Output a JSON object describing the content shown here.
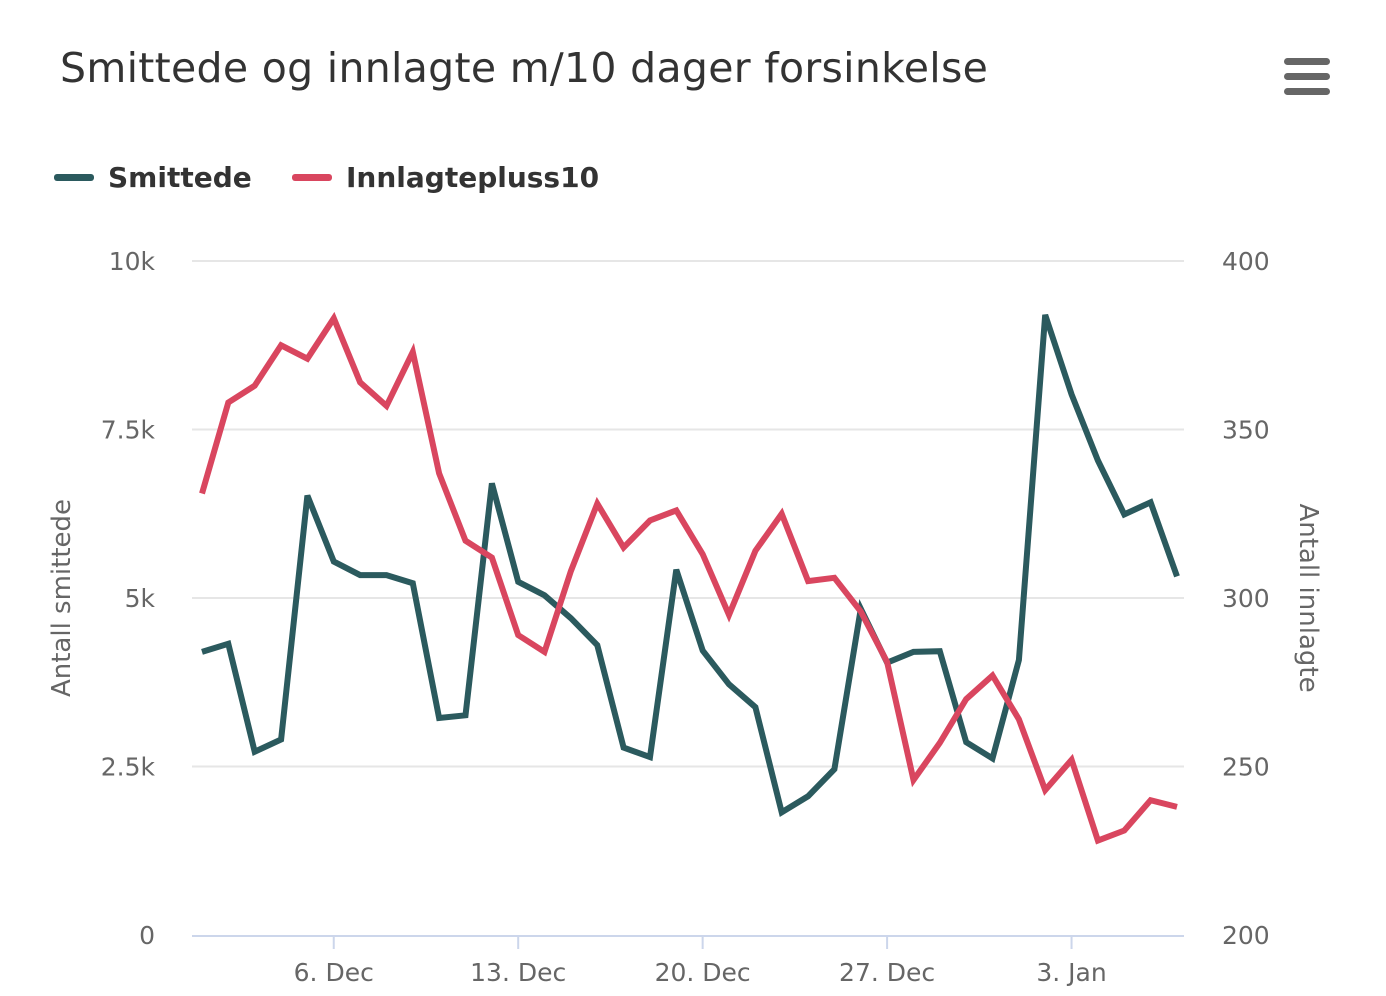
{
  "title": "Smittede og innlagte m/10 dager forsinkelse",
  "menu_icon": "hamburger-menu-icon",
  "colors": {
    "smittede": "#2b5a5e",
    "innlagte": "#d9465f",
    "grid": "#e6e6e6",
    "axis": "#ccd6eb",
    "text": "#333333",
    "muted": "#666666"
  },
  "chart_data": {
    "type": "line",
    "title": "Smittede og innlagte m/10 dager forsinkelse",
    "legend_position": "top-left",
    "grid": true,
    "x_labels": [
      "6. Dec",
      "13. Dec",
      "20. Dec",
      "27. Dec",
      "3. Jan"
    ],
    "x_label_dates": [
      "2020-12-06",
      "2020-12-13",
      "2020-12-20",
      "2020-12-27",
      "2021-01-03"
    ],
    "x": [
      "2020-12-01",
      "2020-12-02",
      "2020-12-03",
      "2020-12-04",
      "2020-12-05",
      "2020-12-06",
      "2020-12-07",
      "2020-12-08",
      "2020-12-09",
      "2020-12-10",
      "2020-12-11",
      "2020-12-12",
      "2020-12-13",
      "2020-12-14",
      "2020-12-15",
      "2020-12-16",
      "2020-12-17",
      "2020-12-18",
      "2020-12-19",
      "2020-12-20",
      "2020-12-21",
      "2020-12-22",
      "2020-12-23",
      "2020-12-24",
      "2020-12-25",
      "2020-12-26",
      "2020-12-27",
      "2020-12-28",
      "2020-12-29",
      "2020-12-30",
      "2020-12-31",
      "2021-01-01",
      "2021-01-02",
      "2021-01-03",
      "2021-01-04",
      "2021-01-05",
      "2021-01-06",
      "2021-01-07"
    ],
    "y_left": {
      "label": "Antall smittede",
      "range": [
        0,
        10000
      ],
      "ticks": [
        "0",
        "2.5k",
        "5k",
        "7.5k",
        "10k"
      ]
    },
    "y_right": {
      "label": "Antall innlagte",
      "range": [
        200,
        400
      ],
      "ticks": [
        "200",
        "250",
        "300",
        "350",
        "400"
      ]
    },
    "series": [
      {
        "name": "Smittede",
        "axis": "left",
        "values": [
          4200,
          4320,
          2720,
          2900,
          6520,
          5540,
          5340,
          5340,
          5220,
          3220,
          3260,
          6700,
          5240,
          5040,
          4700,
          4300,
          2780,
          2640,
          5420,
          4220,
          3720,
          3380,
          1820,
          2060,
          2460,
          4840,
          4040,
          4200,
          4210,
          2860,
          2620,
          4080,
          9200,
          8020,
          7040,
          6240,
          6420,
          5320
        ]
      },
      {
        "name": "Innlagtepluss10",
        "axis": "right",
        "values": [
          331,
          358,
          363,
          375,
          371,
          383,
          364,
          357,
          373,
          337,
          317,
          312,
          289,
          284,
          308,
          328,
          315,
          323,
          326,
          313,
          295,
          314,
          325,
          305,
          306,
          296,
          281,
          246,
          257,
          270,
          277,
          264,
          243,
          252,
          228,
          231,
          240,
          238
        ]
      }
    ]
  }
}
